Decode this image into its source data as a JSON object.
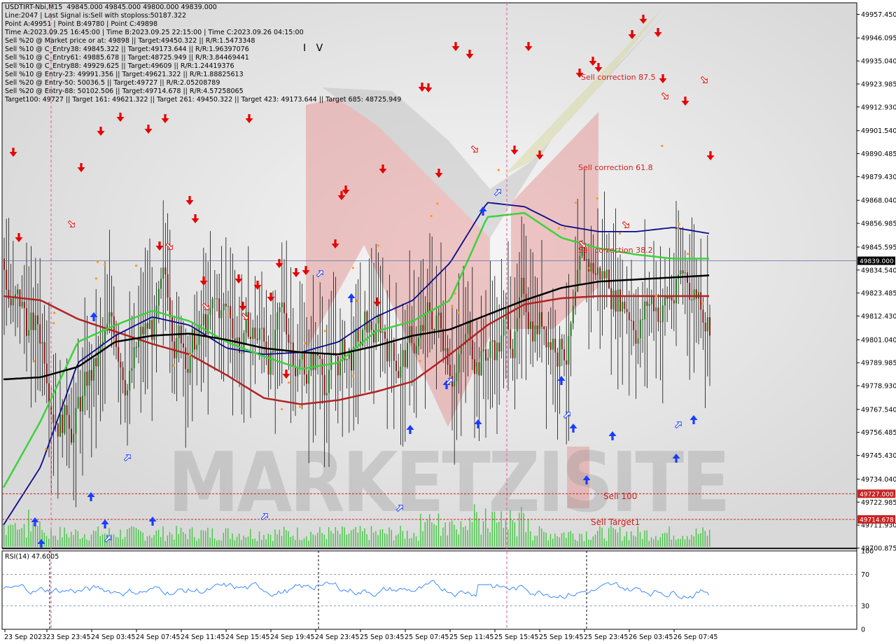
{
  "header": {
    "lines": [
      "USDTIRT-Nbi,M15  49845.000 49845.000 49800.000 49839.000",
      "Line:2047 | Last Signal is:Sell with stoploss:50187.322",
      "Point A:49951 | Point B:49780 | Point C:49898",
      "Time A:2023.09.25 16:45:00 | Time B:2023.09.25 22:15:00 | Time C:2023.09.26 04:15:00",
      "Sell %20 @ Market price or at: 49898 || Target:49450.322 || R/R:1.5473348",
      "Sell %10 @ C_Entry38: 49845.322 || Target:49173.644 || R/R:1.96397076",
      "Sell %10 @ C_Entry61: 49885.678 || Target:48725.949 || R/R:3.84469441",
      "Sell %10 @ C_Entry88: 49929.625 || Target:49609 || R/R:1.24419376",
      "Sell %10 @ Entry-23: 49991.356 || Target:49621.322 || R/R:1.88825613",
      "Sell %20 @ Entry-50: 50036.5 || Target:49727 || R/R:2.05208789",
      "Sell %20 @ Entry-88: 50102.506 || Target:49714.678 || R/R:4.57258065",
      "Target100: 49727 || Target 161: 49621.322 || Target 261: 49450.322 || Target 423: 49173.644 || Target 685: 48725.949"
    ]
  },
  "chart_data": {
    "type": "candlestick",
    "symbol": "USDTIRT-Nbi",
    "timeframe": "M15",
    "ohlc_current": {
      "open": 49845.0,
      "high": 49845.0,
      "low": 49800.0,
      "close": 49839.0
    },
    "ylim": [
      49700.875,
      49963.0
    ],
    "y_ticks": [
      49957.45,
      49946.095,
      49935.04,
      49923.985,
      49912.93,
      49901.54,
      49890.485,
      49879.43,
      49868.04,
      49856.985,
      49845.595,
      49834.54,
      49823.485,
      49812.43,
      49801.04,
      49789.985,
      49778.93,
      49767.54,
      49756.485,
      49745.43,
      49734.04,
      49722.985,
      49711.93,
      49700.875
    ],
    "y_tick_labels": [
      "49957.450",
      "49946.095",
      "49935.040",
      "49923.985",
      "49912.930",
      "49901.540",
      "49890.485",
      "49879.430",
      "49868.040",
      "49856.985",
      "49845.595",
      "49834.540",
      "49823.485",
      "49812.430",
      "49801.040",
      "49789.985",
      "49778.930",
      "49767.540",
      "49756.485",
      "49745.430",
      "49734.040",
      "49722.985",
      "49711.930",
      "49700.875"
    ],
    "x_labels": [
      "23 Sep 2023",
      "23 Sep 23:45",
      "24 Sep 03:45",
      "24 Sep 07:45",
      "24 Sep 11:45",
      "24 Sep 15:45",
      "24 Sep 19:45",
      "24 Sep 23:45",
      "25 Sep 03:45",
      "25 Sep 07:45",
      "25 Sep 11:45",
      "25 Sep 15:45",
      "25 Sep 19:45",
      "25 Sep 23:45",
      "26 Sep 03:45",
      "26 Sep 07:45"
    ],
    "price_tags": [
      {
        "label": "49839.000",
        "value": 49839.0,
        "color": "#000000"
      },
      {
        "label": "49727.000",
        "value": 49727.0,
        "color": "#cc2222"
      },
      {
        "label": "49714.678",
        "value": 49714.678,
        "color": "#cc2222"
      }
    ],
    "levels": [
      {
        "name": "Sell 100",
        "value": 49727.0
      },
      {
        "name": "Sell Target1",
        "value": 49714.678
      }
    ],
    "annotations": [
      {
        "text": "Sell correction 87.5",
        "value": 49929.0
      },
      {
        "text": "Sell correction 61.8",
        "value": 49884.0
      },
      {
        "text": "Sell correction 38.2",
        "value": 49843.0
      },
      {
        "text": "I V",
        "value": 49948.0
      }
    ],
    "sma_values": {
      "black": [
        49782,
        49783,
        49788,
        49800,
        49803,
        49804,
        49801,
        49797,
        49795,
        49794,
        49798,
        49803,
        49806,
        49813,
        49820,
        49826,
        49829,
        49830,
        49831,
        49832
      ],
      "red": [
        49822,
        49820,
        49811,
        49805,
        49799,
        49794,
        49784,
        49773,
        49770,
        49772,
        49776,
        49781,
        49794,
        49808,
        49818,
        49821,
        49822,
        49822,
        49822,
        49822
      ],
      "lime": [
        49730,
        49762,
        49800,
        49808,
        49815,
        49810,
        49800,
        49793,
        49787,
        49790,
        49805,
        49810,
        49820,
        49860,
        49862,
        49850,
        49845,
        49842,
        49840,
        49840
      ],
      "navy": [
        49712,
        49740,
        49790,
        49803,
        49812,
        49808,
        49797,
        49794,
        49795,
        49800,
        49812,
        49820,
        49838,
        49867,
        49865,
        49856,
        49853,
        49853,
        49855,
        49852
      ]
    },
    "rsi": {
      "label": "RSI(14) 47.6005",
      "levels": [
        70,
        30
      ],
      "ticks": [
        "100",
        "70",
        "30",
        "0"
      ],
      "value": 47.6005
    }
  },
  "colors": {
    "bull_candle": "#1a7a1a",
    "bear_candle": "#8a1a1a",
    "sell_arrow": "#e60000",
    "buy_arrow": "#1a3cff",
    "level_line": "#cc2222",
    "rsi_line": "#3d8bff",
    "volume": "#47c447"
  },
  "watermark": "MARKETZISITE"
}
